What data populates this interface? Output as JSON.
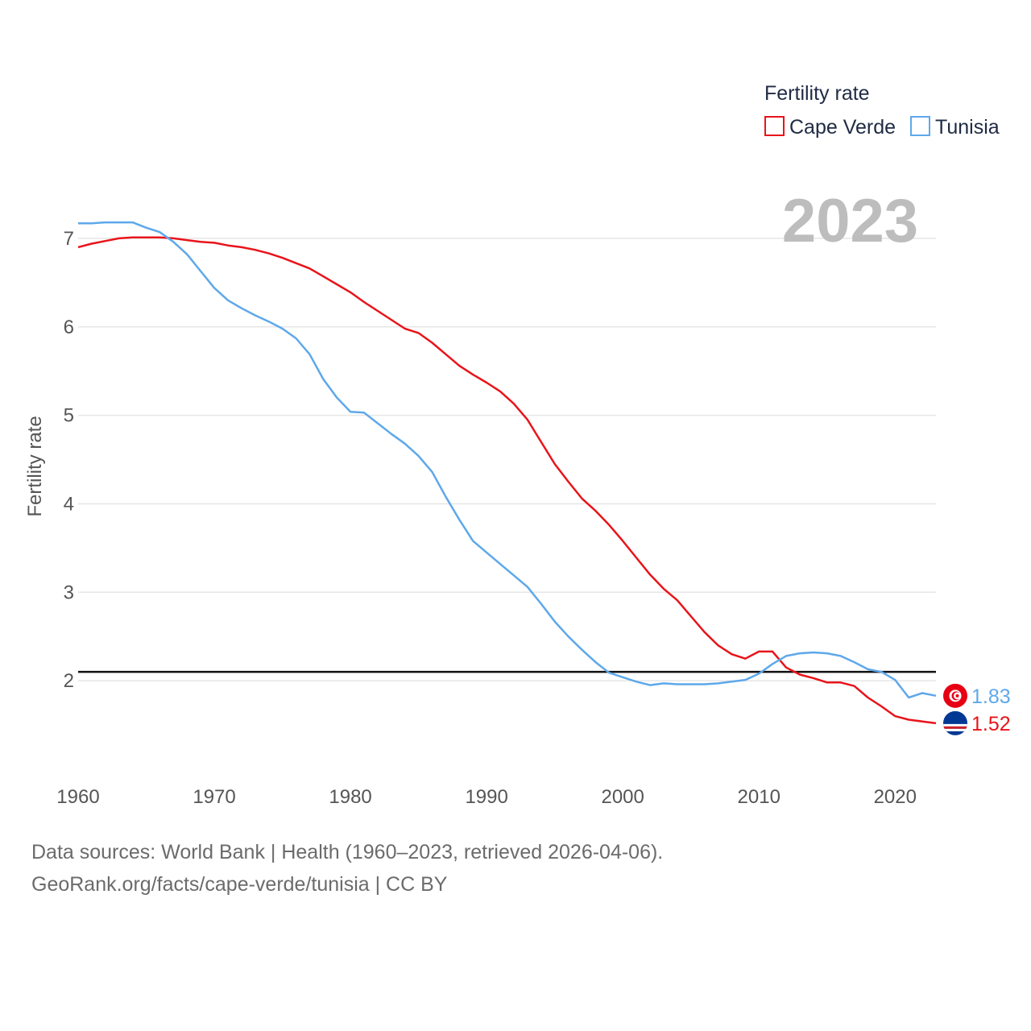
{
  "chart_data": {
    "type": "line",
    "legend_title": "Fertility rate",
    "ylabel": "Fertility rate",
    "xlabel": "",
    "year_label": "2023",
    "xlim": [
      1960,
      2023
    ],
    "ylim": [
      1.0,
      7.6
    ],
    "yticks": [
      2,
      3,
      4,
      5,
      6,
      7
    ],
    "xticks": [
      1960,
      1970,
      1980,
      1990,
      2000,
      2010,
      2020
    ],
    "reference_line": 2.1,
    "grid": true,
    "legend_position": "top-right",
    "x": [
      1960,
      1961,
      1962,
      1963,
      1964,
      1965,
      1966,
      1967,
      1968,
      1969,
      1970,
      1971,
      1972,
      1973,
      1974,
      1975,
      1976,
      1977,
      1978,
      1979,
      1980,
      1981,
      1982,
      1983,
      1984,
      1985,
      1986,
      1987,
      1988,
      1989,
      1990,
      1991,
      1992,
      1993,
      1994,
      1995,
      1996,
      1997,
      1998,
      1999,
      2000,
      2001,
      2002,
      2003,
      2004,
      2005,
      2006,
      2007,
      2008,
      2009,
      2010,
      2011,
      2012,
      2013,
      2014,
      2015,
      2016,
      2017,
      2018,
      2019,
      2020,
      2021,
      2022,
      2023
    ],
    "series": [
      {
        "name": "Cape Verde",
        "color": "#e8141a",
        "end_label": "1.52",
        "flag": "cape-verde-flag-icon",
        "values": [
          6.9,
          6.94,
          6.97,
          7.0,
          7.01,
          7.01,
          7.01,
          7.0,
          6.98,
          6.96,
          6.95,
          6.92,
          6.9,
          6.87,
          6.83,
          6.78,
          6.72,
          6.66,
          6.57,
          6.48,
          6.39,
          6.28,
          6.18,
          6.08,
          5.98,
          5.93,
          5.82,
          5.69,
          5.56,
          5.46,
          5.37,
          5.27,
          5.13,
          4.95,
          4.7,
          4.45,
          4.25,
          4.06,
          3.92,
          3.76,
          3.58,
          3.39,
          3.2,
          3.04,
          2.91,
          2.73,
          2.55,
          2.4,
          2.3,
          2.25,
          2.33,
          2.33,
          2.15,
          2.07,
          2.03,
          1.98,
          1.98,
          1.94,
          1.81,
          1.71,
          1.6,
          1.56,
          1.54,
          1.52
        ]
      },
      {
        "name": "Tunisia",
        "color": "#5ea8ea",
        "end_label": "1.83",
        "flag": "tunisia-flag-icon",
        "values": [
          7.17,
          7.17,
          7.18,
          7.18,
          7.18,
          7.12,
          7.07,
          6.96,
          6.82,
          6.63,
          6.44,
          6.3,
          6.21,
          6.13,
          6.06,
          5.98,
          5.87,
          5.69,
          5.41,
          5.2,
          5.04,
          5.03,
          4.91,
          4.79,
          4.68,
          4.54,
          4.36,
          4.08,
          3.82,
          3.58,
          3.45,
          3.32,
          3.19,
          3.06,
          2.87,
          2.67,
          2.5,
          2.35,
          2.21,
          2.09,
          2.04,
          1.99,
          1.95,
          1.97,
          1.96,
          1.96,
          1.96,
          1.97,
          1.99,
          2.01,
          2.08,
          2.19,
          2.28,
          2.31,
          2.32,
          2.31,
          2.28,
          2.21,
          2.13,
          2.1,
          2.01,
          1.81,
          1.86,
          1.83
        ]
      }
    ]
  },
  "footer": {
    "line1": "Data sources: World Bank | Health (1960–2023, retrieved 2026-04-06).",
    "line2": "GeoRank.org/facts/cape-verde/tunisia | CC BY"
  }
}
